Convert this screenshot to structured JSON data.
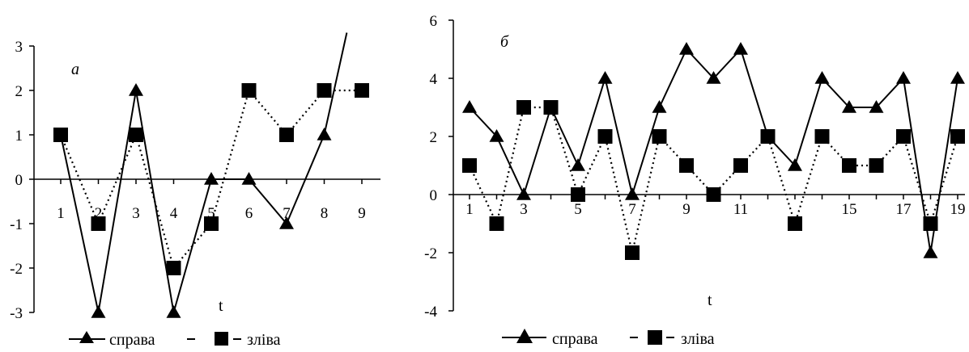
{
  "chart_data": [
    {
      "type": "line",
      "panel_label": "а",
      "xlabel": "t",
      "x": [
        1,
        2,
        3,
        4,
        5,
        6,
        7,
        8,
        9
      ],
      "x_tick_labels": [
        "1",
        "2",
        "3",
        "4",
        "5",
        "6",
        "7",
        "8",
        "9"
      ],
      "y_tick_labels": [
        "3",
        "2",
        "1",
        "0",
        "-1",
        "-2",
        "-3"
      ],
      "ylim": [
        -3,
        3
      ],
      "grid": false,
      "legend_position": "bottom",
      "series": [
        {
          "name": "справа",
          "marker": "triangle",
          "line": "solid",
          "color": "#000000",
          "x": [
            1,
            2,
            3,
            4,
            5,
            6,
            7,
            8,
            8.6
          ],
          "values": [
            1,
            -3,
            2,
            -3,
            0,
            0,
            -1,
            1,
            3.3
          ]
        },
        {
          "name": "зліва",
          "marker": "square",
          "line": "dotted",
          "color": "#000000",
          "x": [
            1,
            2,
            3,
            4,
            5,
            6,
            7,
            8,
            9
          ],
          "values": [
            1,
            -1,
            1,
            -2,
            -1,
            2,
            1,
            2,
            2
          ]
        }
      ]
    },
    {
      "type": "line",
      "panel_label": "б",
      "xlabel": "t",
      "x": [
        1,
        2,
        3,
        4,
        5,
        6,
        7,
        8,
        9,
        10,
        11,
        12,
        13,
        14,
        15,
        16,
        17,
        18,
        19
      ],
      "x_tick_labels": [
        "1",
        "3",
        "5",
        "7",
        "9",
        "11",
        "15",
        "17",
        "19"
      ],
      "y_tick_labels": [
        "6",
        "4",
        "2",
        "0",
        "-2",
        "-4"
      ],
      "ylim": [
        -4,
        6
      ],
      "grid": false,
      "legend_position": "bottom",
      "series": [
        {
          "name": "справа",
          "marker": "triangle",
          "line": "solid",
          "color": "#000000",
          "values": [
            3,
            2,
            0,
            3,
            1,
            4,
            0,
            3,
            5,
            4,
            5,
            2,
            1,
            4,
            3,
            3,
            4,
            -2,
            4
          ]
        },
        {
          "name": "зліва",
          "marker": "square",
          "line": "dotted",
          "color": "#000000",
          "values": [
            1,
            -1,
            3,
            3,
            0,
            2,
            -2,
            2,
            1,
            0,
            1,
            2,
            -1,
            2,
            1,
            1,
            2,
            -1,
            2
          ]
        }
      ]
    }
  ]
}
